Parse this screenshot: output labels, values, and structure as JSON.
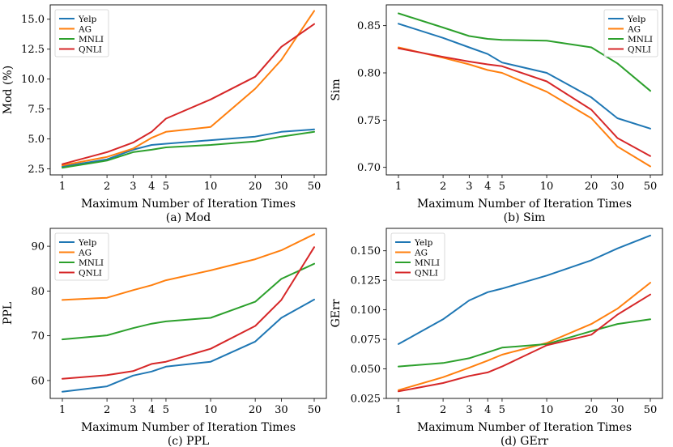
{
  "chart_data": [
    {
      "id": "mod",
      "type": "line",
      "caption": "(a) Mod",
      "xlabel": "Maximum Number of Iteration Times",
      "ylabel": "Mod (%)",
      "x": [
        1,
        2,
        3,
        4,
        5,
        10,
        20,
        30,
        50
      ],
      "xscale": "log",
      "xticks": [
        "1",
        "2",
        "3",
        "4",
        "5",
        "10",
        "20",
        "30",
        "50"
      ],
      "yticks": [
        "2.5",
        "5.0",
        "7.5",
        "10.0",
        "12.5",
        "15.0"
      ],
      "ytick_values": [
        2.5,
        5.0,
        7.5,
        10.0,
        12.5,
        15.0
      ],
      "ylim": [
        2.0,
        16.2
      ],
      "legend": "top-left",
      "series": [
        {
          "name": "Yelp",
          "color": "#1f77b4",
          "values": [
            2.7,
            3.3,
            4.1,
            4.5,
            4.6,
            4.9,
            5.2,
            5.6,
            5.8
          ]
        },
        {
          "name": "AG",
          "color": "#ff7f0e",
          "values": [
            2.8,
            3.5,
            4.2,
            5.1,
            5.6,
            6.0,
            9.2,
            11.6,
            15.7
          ]
        },
        {
          "name": "MNLI",
          "color": "#2ca02c",
          "values": [
            2.6,
            3.2,
            3.9,
            4.1,
            4.3,
            4.5,
            4.8,
            5.2,
            5.6
          ]
        },
        {
          "name": "QNLI",
          "color": "#d62728",
          "values": [
            2.9,
            3.9,
            4.7,
            5.6,
            6.7,
            8.3,
            10.2,
            12.7,
            14.6
          ]
        }
      ]
    },
    {
      "id": "sim",
      "type": "line",
      "caption": "(b) Sim",
      "xlabel": "Maximum Number of Iteration Times",
      "ylabel": "Sim",
      "x": [
        1,
        2,
        3,
        4,
        5,
        10,
        20,
        30,
        50
      ],
      "xscale": "log",
      "xticks": [
        "1",
        "2",
        "3",
        "4",
        "5",
        "10",
        "20",
        "30",
        "50"
      ],
      "yticks": [
        "0.70",
        "0.75",
        "0.80",
        "0.85"
      ],
      "ytick_values": [
        0.7,
        0.75,
        0.8,
        0.85
      ],
      "ylim": [
        0.692,
        0.872
      ],
      "legend": "top-right",
      "series": [
        {
          "name": "Yelp",
          "color": "#1f77b4",
          "values": [
            0.852,
            0.837,
            0.827,
            0.82,
            0.811,
            0.8,
            0.774,
            0.752,
            0.741
          ]
        },
        {
          "name": "AG",
          "color": "#ff7f0e",
          "values": [
            0.827,
            0.816,
            0.809,
            0.803,
            0.8,
            0.78,
            0.752,
            0.722,
            0.701
          ]
        },
        {
          "name": "MNLI",
          "color": "#2ca02c",
          "values": [
            0.863,
            0.848,
            0.839,
            0.836,
            0.835,
            0.834,
            0.827,
            0.81,
            0.781
          ]
        },
        {
          "name": "QNLI",
          "color": "#d62728",
          "values": [
            0.826,
            0.817,
            0.812,
            0.809,
            0.807,
            0.791,
            0.761,
            0.731,
            0.712
          ]
        }
      ]
    },
    {
      "id": "ppl",
      "type": "line",
      "caption": "(c) PPL",
      "xlabel": "Maximum Number of Iteration Times",
      "ylabel": "PPL",
      "x": [
        1,
        2,
        3,
        4,
        5,
        10,
        20,
        30,
        50
      ],
      "xscale": "log",
      "xticks": [
        "1",
        "2",
        "3",
        "4",
        "5",
        "10",
        "20",
        "30",
        "50"
      ],
      "yticks": [
        "60",
        "70",
        "80",
        "90"
      ],
      "ytick_values": [
        60,
        70,
        80,
        90
      ],
      "ylim": [
        56.0,
        94.0
      ],
      "legend": "top-left",
      "series": [
        {
          "name": "Yelp",
          "color": "#1f77b4",
          "values": [
            57.5,
            58.7,
            61.1,
            62.0,
            63.1,
            64.2,
            68.7,
            74.0,
            78.1
          ]
        },
        {
          "name": "AG",
          "color": "#ff7f0e",
          "values": [
            78.0,
            78.5,
            80.2,
            81.3,
            82.4,
            84.6,
            87.1,
            89.1,
            92.7
          ]
        },
        {
          "name": "MNLI",
          "color": "#2ca02c",
          "values": [
            69.2,
            70.1,
            71.7,
            72.7,
            73.2,
            74.0,
            77.6,
            82.7,
            86.1
          ]
        },
        {
          "name": "QNLI",
          "color": "#d62728",
          "values": [
            60.4,
            61.2,
            62.1,
            63.7,
            64.2,
            67.1,
            72.2,
            78.0,
            89.8
          ]
        }
      ]
    },
    {
      "id": "gerr",
      "type": "line",
      "caption": "(d) GErr",
      "xlabel": "Maximum Number of Iteration Times",
      "ylabel": "GErr",
      "x": [
        1,
        2,
        3,
        4,
        5,
        10,
        20,
        30,
        50
      ],
      "xscale": "log",
      "xticks": [
        "1",
        "2",
        "3",
        "4",
        "5",
        "10",
        "20",
        "30",
        "50"
      ],
      "yticks": [
        "0.025",
        "0.050",
        "0.075",
        "0.100",
        "0.125",
        "0.150"
      ],
      "ytick_values": [
        0.025,
        0.05,
        0.075,
        0.1,
        0.125,
        0.15
      ],
      "ylim": [
        0.025,
        0.169
      ],
      "legend": "top-left",
      "series": [
        {
          "name": "Yelp",
          "color": "#1f77b4",
          "values": [
            0.071,
            0.092,
            0.108,
            0.115,
            0.118,
            0.129,
            0.142,
            0.152,
            0.163
          ]
        },
        {
          "name": "AG",
          "color": "#ff7f0e",
          "values": [
            0.032,
            0.043,
            0.051,
            0.057,
            0.062,
            0.072,
            0.088,
            0.101,
            0.123
          ]
        },
        {
          "name": "MNLI",
          "color": "#2ca02c",
          "values": [
            0.052,
            0.055,
            0.059,
            0.064,
            0.068,
            0.071,
            0.082,
            0.088,
            0.092
          ]
        },
        {
          "name": "QNLI",
          "color": "#d62728",
          "values": [
            0.031,
            0.038,
            0.044,
            0.047,
            0.052,
            0.07,
            0.079,
            0.096,
            0.113
          ]
        }
      ]
    }
  ]
}
